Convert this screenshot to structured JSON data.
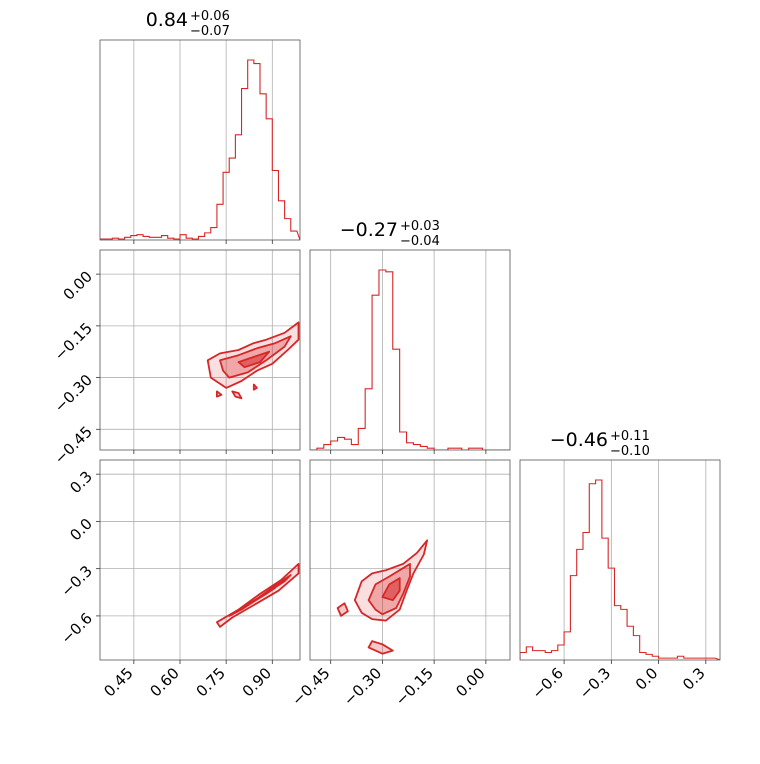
{
  "chart_data": {
    "type": "corner",
    "color": "#d62728",
    "parameters": [
      {
        "median": "0.84",
        "plus": "+0.06",
        "minus": "−0.07"
      },
      {
        "median": "−0.27",
        "plus": "+0.03",
        "minus": "−0.04"
      },
      {
        "median": "−0.46",
        "plus": "+0.11",
        "minus": "−0.10"
      }
    ],
    "axes": [
      {
        "range": [
          0.34,
          0.99
        ],
        "ticks": [
          0.45,
          0.6,
          0.75,
          0.9
        ],
        "tick_labels": [
          "0.45",
          "0.60",
          "0.75",
          "0.90"
        ]
      },
      {
        "range": [
          -0.51,
          0.07
        ],
        "ticks": [
          -0.45,
          -0.3,
          -0.15,
          0.0
        ],
        "tick_labels": [
          "−0.45",
          "−0.30",
          "−0.15",
          "0.00"
        ]
      },
      {
        "range": [
          -0.88,
          0.39
        ],
        "ticks": [
          -0.6,
          -0.3,
          0.0,
          0.3
        ],
        "tick_labels": [
          "−0.6",
          "−0.3",
          "0.0",
          "0.3"
        ]
      }
    ],
    "histograms": [
      {
        "x": [
          0.35,
          0.37,
          0.39,
          0.41,
          0.43,
          0.45,
          0.47,
          0.49,
          0.51,
          0.53,
          0.55,
          0.57,
          0.59,
          0.61,
          0.63,
          0.65,
          0.67,
          0.69,
          0.71,
          0.73,
          0.75,
          0.77,
          0.79,
          0.81,
          0.83,
          0.85,
          0.87,
          0.89,
          0.91,
          0.93,
          0.95,
          0.97
        ],
        "counts": [
          0.5,
          0.5,
          1,
          0.5,
          1.5,
          2.5,
          3,
          2,
          1.5,
          1.5,
          2.5,
          1,
          0.5,
          3,
          1,
          0.5,
          2,
          4,
          7,
          20,
          38,
          46,
          59,
          85,
          101,
          99,
          82,
          68,
          39,
          22,
          12,
          5
        ]
      },
      {
        "x": [
          -0.5,
          -0.48,
          -0.46,
          -0.44,
          -0.42,
          -0.4,
          -0.38,
          -0.36,
          -0.34,
          -0.32,
          -0.3,
          -0.28,
          -0.26,
          -0.24,
          -0.22,
          -0.2,
          -0.18,
          -0.16,
          -0.14,
          -0.12,
          -0.1,
          -0.08,
          -0.06,
          -0.04,
          -0.02,
          0.0
        ],
        "counts": [
          0,
          1,
          3,
          5,
          7,
          6,
          3,
          12,
          34,
          86,
          100,
          99,
          56,
          10,
          4,
          3,
          2,
          1,
          0,
          0,
          1,
          1,
          0,
          1,
          1,
          0
        ]
      },
      {
        "x": [
          -0.86,
          -0.82,
          -0.78,
          -0.74,
          -0.7,
          -0.66,
          -0.62,
          -0.58,
          -0.54,
          -0.5,
          -0.46,
          -0.42,
          -0.38,
          -0.34,
          -0.3,
          -0.26,
          -0.22,
          -0.18,
          -0.14,
          -0.1,
          -0.06,
          -0.02,
          0.02,
          0.06,
          0.1,
          0.14,
          0.18,
          0.22,
          0.26,
          0.3,
          0.34
        ],
        "counts": [
          4,
          7,
          5,
          5,
          4,
          5,
          8,
          15,
          45,
          59,
          68,
          94,
          96,
          65,
          49,
          29,
          27,
          18,
          13,
          4,
          3,
          2,
          1,
          1,
          1,
          2,
          1,
          1,
          1,
          1,
          1
        ]
      }
    ],
    "contours": [
      {
        "row": 1,
        "col": 0,
        "levels": [
          {
            "points": [
              [
                0.69,
                -0.25
              ],
              [
                0.73,
                -0.23
              ],
              [
                0.79,
                -0.22
              ],
              [
                0.84,
                -0.2
              ],
              [
                0.88,
                -0.19
              ],
              [
                0.94,
                -0.17
              ],
              [
                0.985,
                -0.14
              ],
              [
                0.985,
                -0.19
              ],
              [
                0.95,
                -0.22
              ],
              [
                0.9,
                -0.26
              ],
              [
                0.85,
                -0.28
              ],
              [
                0.8,
                -0.31
              ],
              [
                0.75,
                -0.33
              ],
              [
                0.7,
                -0.3
              ]
            ]
          },
          {
            "points": [
              [
                0.73,
                -0.25
              ],
              [
                0.79,
                -0.235
              ],
              [
                0.85,
                -0.215
              ],
              [
                0.91,
                -0.2
              ],
              [
                0.96,
                -0.18
              ],
              [
                0.94,
                -0.21
              ],
              [
                0.88,
                -0.25
              ],
              [
                0.82,
                -0.285
              ],
              [
                0.76,
                -0.3
              ],
              [
                0.74,
                -0.28
              ]
            ]
          },
          {
            "points": [
              [
                0.79,
                -0.255
              ],
              [
                0.84,
                -0.24
              ],
              [
                0.89,
                -0.225
              ],
              [
                0.86,
                -0.255
              ],
              [
                0.81,
                -0.27
              ]
            ]
          },
          {
            "points": [
              [
                0.77,
                -0.34
              ],
              [
                0.78,
                -0.355
              ],
              [
                0.8,
                -0.36
              ],
              [
                0.79,
                -0.345
              ]
            ]
          },
          {
            "points": [
              [
                0.72,
                -0.34
              ],
              [
                0.735,
                -0.35
              ],
              [
                0.72,
                -0.355
              ]
            ]
          },
          {
            "points": [
              [
                0.84,
                -0.32
              ],
              [
                0.85,
                -0.33
              ],
              [
                0.84,
                -0.335
              ]
            ]
          }
        ]
      },
      {
        "row": 2,
        "col": 0,
        "levels": [
          {
            "points": [
              [
                0.72,
                -0.64
              ],
              [
                0.79,
                -0.56
              ],
              [
                0.86,
                -0.46
              ],
              [
                0.93,
                -0.37
              ],
              [
                0.985,
                -0.27
              ],
              [
                0.985,
                -0.33
              ],
              [
                0.92,
                -0.44
              ],
              [
                0.85,
                -0.52
              ],
              [
                0.77,
                -0.61
              ],
              [
                0.73,
                -0.67
              ]
            ]
          },
          {
            "points": [
              [
                0.76,
                -0.6
              ],
              [
                0.83,
                -0.52
              ],
              [
                0.9,
                -0.42
              ],
              [
                0.96,
                -0.34
              ],
              [
                0.94,
                -0.38
              ],
              [
                0.87,
                -0.47
              ],
              [
                0.8,
                -0.56
              ]
            ]
          },
          {
            "points": [
              [
                0.8,
                -0.55
              ],
              [
                0.86,
                -0.48
              ],
              [
                0.91,
                -0.42
              ],
              [
                0.88,
                -0.46
              ],
              [
                0.83,
                -0.52
              ]
            ]
          }
        ]
      },
      {
        "row": 2,
        "col": 1,
        "levels": [
          {
            "points": [
              [
                -0.38,
                -0.5
              ],
              [
                -0.36,
                -0.38
              ],
              [
                -0.33,
                -0.33
              ],
              [
                -0.29,
                -0.31
              ],
              [
                -0.24,
                -0.27
              ],
              [
                -0.2,
                -0.2
              ],
              [
                -0.17,
                -0.12
              ],
              [
                -0.18,
                -0.21
              ],
              [
                -0.21,
                -0.33
              ],
              [
                -0.23,
                -0.44
              ],
              [
                -0.25,
                -0.56
              ],
              [
                -0.29,
                -0.63
              ],
              [
                -0.33,
                -0.62
              ],
              [
                -0.36,
                -0.58
              ]
            ]
          },
          {
            "points": [
              [
                -0.34,
                -0.5
              ],
              [
                -0.32,
                -0.4
              ],
              [
                -0.28,
                -0.35
              ],
              [
                -0.25,
                -0.31
              ],
              [
                -0.22,
                -0.27
              ],
              [
                -0.22,
                -0.35
              ],
              [
                -0.24,
                -0.46
              ],
              [
                -0.26,
                -0.55
              ],
              [
                -0.3,
                -0.59
              ],
              [
                -0.32,
                -0.56
              ]
            ]
          },
          {
            "points": [
              [
                -0.3,
                -0.48
              ],
              [
                -0.28,
                -0.4
              ],
              [
                -0.25,
                -0.36
              ],
              [
                -0.25,
                -0.44
              ],
              [
                -0.27,
                -0.5
              ]
            ]
          },
          {
            "points": [
              [
                -0.33,
                -0.76
              ],
              [
                -0.3,
                -0.78
              ],
              [
                -0.27,
                -0.82
              ],
              [
                -0.3,
                -0.84
              ],
              [
                -0.34,
                -0.8
              ]
            ]
          },
          {
            "points": [
              [
                -0.41,
                -0.52
              ],
              [
                -0.4,
                -0.57
              ],
              [
                -0.42,
                -0.6
              ],
              [
                -0.43,
                -0.55
              ]
            ]
          }
        ]
      }
    ]
  }
}
